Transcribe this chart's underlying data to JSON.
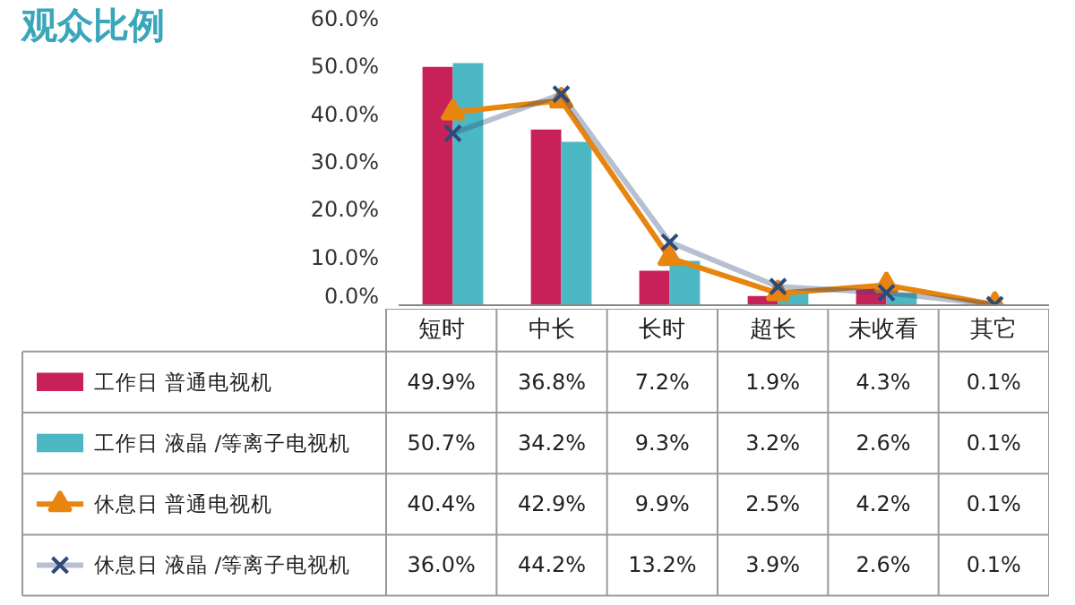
{
  "chart_data": {
    "type": "bar",
    "title": "观众比例",
    "legend": "bottom",
    "categories": [
      "短时",
      "中长",
      "长时",
      "超长",
      "未收看",
      "其它"
    ],
    "ylim": [
      0,
      60
    ],
    "yticks": [
      {
        "value": 0,
        "label": "0.0%"
      },
      {
        "value": 10,
        "label": "10.0%"
      },
      {
        "value": 20,
        "label": "20.0%"
      },
      {
        "value": 30,
        "label": "30.0%"
      },
      {
        "value": 40,
        "label": "40.0%"
      },
      {
        "value": 50,
        "label": "50.0%"
      },
      {
        "value": 60,
        "label": "60.0%"
      }
    ],
    "series": [
      {
        "name": "工作日  普通电视机",
        "color": "#c8215a",
        "values": [
          49.9,
          36.8,
          7.2,
          1.9,
          4.3,
          0.1
        ],
        "value_labels": [
          "49.9%",
          "36.8%",
          "7.2%",
          "1.9%",
          "4.3%",
          "0.1%"
        ]
      },
      {
        "name": "工作日  液晶 /等离子电视机",
        "color": "#4cb8c4",
        "values": [
          50.7,
          34.2,
          9.3,
          3.2,
          2.6,
          0.1
        ],
        "value_labels": [
          "50.7%",
          "34.2%",
          "9.3%",
          "3.2%",
          "2.6%",
          "0.1%"
        ]
      },
      {
        "name": "休息日  普通电视机",
        "type": "line",
        "marker": "triangle",
        "color": "#e8850f",
        "values": [
          40.4,
          42.9,
          9.9,
          2.5,
          4.2,
          0.1
        ],
        "value_labels": [
          "40.4%",
          "42.9%",
          "9.9%",
          "2.5%",
          "4.2%",
          "0.1%"
        ]
      },
      {
        "name": "休息日  液晶 /等离子电视机",
        "type": "line",
        "marker": "cross",
        "color": "#2e4a7a",
        "values": [
          36.0,
          44.2,
          13.2,
          3.9,
          2.6,
          0.1
        ],
        "value_labels": [
          "36.0%",
          "44.2%",
          "13.2%",
          "3.9%",
          "2.6%",
          "0.1%"
        ]
      }
    ]
  }
}
